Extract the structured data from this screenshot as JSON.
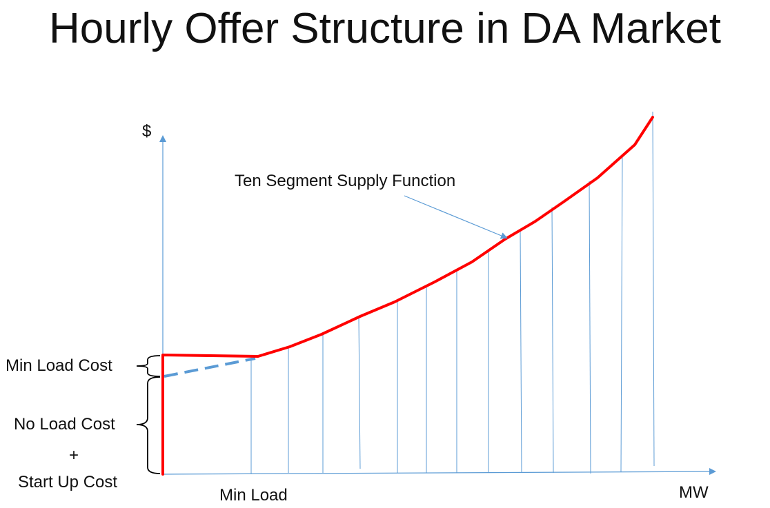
{
  "title": "Hourly Offer Structure in DA Market",
  "axes": {
    "y_label": "$",
    "x_label": "MW"
  },
  "labels": {
    "supply_function": "Ten Segment Supply Function",
    "min_load_cost": "Min Load Cost",
    "no_load_cost": "No Load Cost",
    "plus": "+",
    "start_up_cost": "Start Up Cost",
    "min_load": "Min Load"
  },
  "colors": {
    "curve": "#ff0000",
    "axis": "#5b9bd5",
    "dashed": "#5b9bd5",
    "brace": "#000000"
  },
  "segment_count": 10
}
